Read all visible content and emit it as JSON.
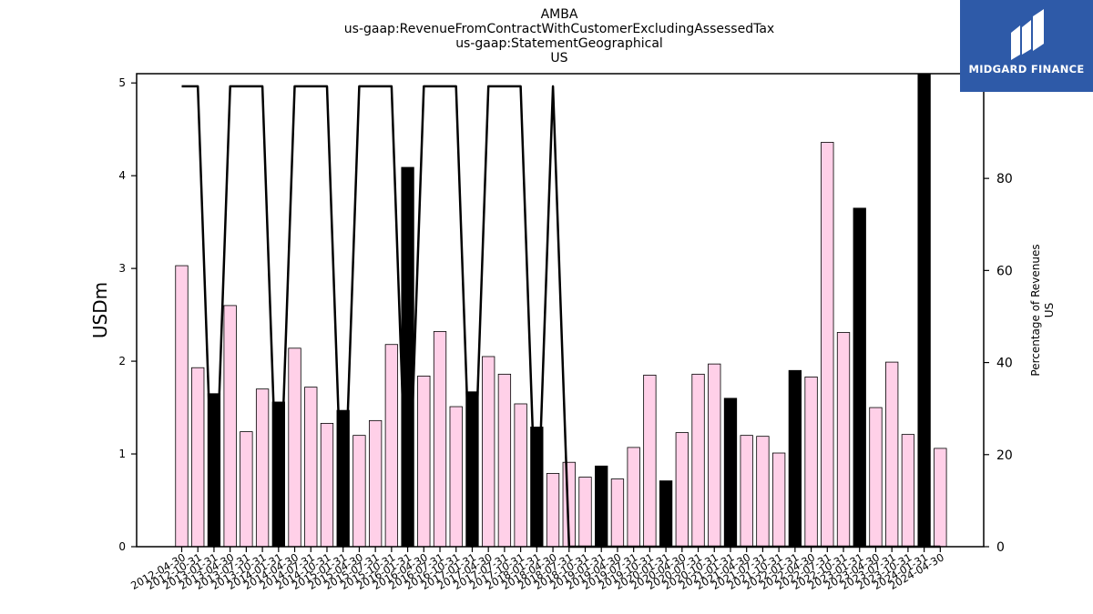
{
  "chart_data": {
    "type": "bar",
    "title_lines": [
      "AMBA",
      "us-gaap:RevenueFromContractWithCustomerExcludingAssessedTax",
      "us-gaap:StatementGeographical",
      "US"
    ],
    "ylabel": "USDm",
    "ylabel_right": [
      "Percentage of Revenues",
      "US"
    ],
    "ylim": [
      0,
      5.1
    ],
    "ylim_right": [
      0,
      102.75
    ],
    "yticks": [
      "0",
      "1",
      "2",
      "3",
      "4",
      "5"
    ],
    "yticks_right": [
      "0",
      "20",
      "40",
      "60",
      "80",
      "100"
    ],
    "categories": [
      "2012-04-30",
      "2012-10-31",
      "2013-01-31",
      "2013-04-30",
      "2013-07-31",
      "2013-10-31",
      "2014-01-31",
      "2014-04-30",
      "2014-07-31",
      "2014-10-31",
      "2015-01-31",
      "2015-04-30",
      "2015-07-31",
      "2015-10-31",
      "2016-01-31",
      "2016-04-30",
      "2016-07-31",
      "2016-10-31",
      "2017-01-31",
      "2017-04-30",
      "2017-07-31",
      "2017-10-31",
      "2018-01-31",
      "2018-04-30",
      "2018-07-31",
      "2018-10-31",
      "2019-01-31",
      "2019-04-30",
      "2019-07-31",
      "2019-10-31",
      "2020-01-31",
      "2020-04-30",
      "2020-07-31",
      "2020-10-31",
      "2021-01-31",
      "2021-04-30",
      "2021-07-31",
      "2021-10-31",
      "2022-01-31",
      "2022-04-30",
      "2022-07-31",
      "2022-10-31",
      "2023-01-31",
      "2023-04-30",
      "2023-07-31",
      "2023-10-31",
      "2024-01-31",
      "2024-04-30"
    ],
    "series": [
      {
        "values": [
          3.03,
          1.93,
          1.65,
          2.6,
          1.24,
          1.7,
          1.56,
          2.14,
          1.72,
          1.33,
          1.47,
          1.2,
          1.36,
          2.18,
          4.09,
          1.84,
          2.32,
          1.51,
          1.67,
          2.05,
          1.86,
          1.54,
          1.29,
          0.79,
          0.91,
          0.75,
          0.87,
          0.73,
          1.07,
          1.85,
          0.71,
          1.23,
          1.86,
          1.97,
          1.6,
          1.2,
          1.19,
          1.01,
          1.9,
          1.83,
          4.36,
          2.31,
          3.65,
          1.5,
          1.99,
          1.21,
          5.1,
          1.06
        ],
        "highlight": [
          false,
          false,
          true,
          false,
          false,
          false,
          true,
          false,
          false,
          false,
          true,
          false,
          false,
          false,
          true,
          false,
          false,
          false,
          true,
          false,
          false,
          false,
          true,
          false,
          false,
          false,
          true,
          false,
          false,
          false,
          true,
          false,
          false,
          false,
          true,
          false,
          false,
          false,
          true,
          false,
          false,
          false,
          true,
          false,
          false,
          false,
          true,
          false
        ]
      },
      {
        "type": "line",
        "values": [
          100,
          100,
          0,
          100,
          100,
          100,
          0,
          100,
          100,
          100,
          0,
          100,
          100,
          100,
          0,
          100,
          100,
          100,
          0,
          100,
          100,
          100,
          0,
          100,
          0,
          0,
          0,
          0,
          0,
          0,
          0,
          0,
          0,
          0,
          0,
          0,
          0,
          0,
          0,
          0,
          0,
          0,
          0,
          0,
          0,
          0,
          0,
          0
        ]
      }
    ],
    "colors": {
      "bar_fill": "#ffd0e8",
      "bar_highlight": "#000000",
      "bar_edge": "#000000",
      "line": "#000000"
    }
  },
  "logo": {
    "text": "MIDGARD FINANCE",
    "color": "#2e5aa8"
  }
}
